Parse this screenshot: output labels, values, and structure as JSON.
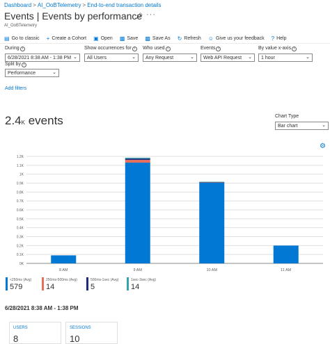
{
  "breadcrumb": {
    "items": [
      "Dashboard",
      "AI_OoBTelemetry",
      "End-to-end transaction details"
    ],
    "separator": ">"
  },
  "page": {
    "title": "Events | Events by performance",
    "subtitle": "AI_OoBTelemetry"
  },
  "toolbar": {
    "items": [
      {
        "label": "Go to classic",
        "icon": "classic-icon"
      },
      {
        "label": "Create a Cohort",
        "icon": "plus-icon"
      },
      {
        "label": "Open",
        "icon": "folder-icon"
      },
      {
        "label": "Save",
        "icon": "save-icon"
      },
      {
        "label": "Save As",
        "icon": "save-as-icon"
      },
      {
        "label": "Refresh",
        "icon": "refresh-icon"
      },
      {
        "label": "Give us your feedback",
        "icon": "feedback-icon"
      },
      {
        "label": "Help",
        "icon": "help-icon"
      }
    ]
  },
  "filters": {
    "during": {
      "label": "During",
      "value": "6/28/2021 8:38 AM - 1:38 PM"
    },
    "occurrences": {
      "label": "Show occurrences for",
      "value": "All Users"
    },
    "who_used": {
      "label": "Who used",
      "value": "Any Request"
    },
    "events": {
      "label": "Events",
      "value": "Web API Request"
    },
    "by_value": {
      "label": "By value x-axis",
      "value": "1 hour"
    },
    "split_by": {
      "label": "Split by",
      "value": "Performance"
    },
    "add_filters": "Add filters"
  },
  "summary": {
    "count": "2.4",
    "unit": "K",
    "noun": "events"
  },
  "chart_type": {
    "label": "Chart Type",
    "value": "Bar chart"
  },
  "chart_data": {
    "type": "bar",
    "stacked": true,
    "categories": [
      "8 AM",
      "9 AM",
      "10 AM",
      "11 AM"
    ],
    "ylim": [
      0,
      1200
    ],
    "yticks": [
      "0K",
      "0.1K",
      "0.2K",
      "0.3K",
      "0.4K",
      "0.5K",
      "0.6K",
      "0.7K",
      "0.8K",
      "0.9K",
      "1K",
      "1.1K",
      "1.2K"
    ],
    "grid": true,
    "series": [
      {
        "name": "<250ms (Avg)",
        "color": "#0078d4",
        "values": [
          90,
          1130,
          905,
          200
        ]
      },
      {
        "name": "250ms-500ms (Avg)",
        "color": "#e8705a",
        "values": [
          0,
          30,
          4,
          0
        ]
      },
      {
        "name": "500ms-1sec (Avg)",
        "color": "#1f2a7c",
        "values": [
          0,
          15,
          3,
          0
        ]
      },
      {
        "name": "1sec-3sec (Avg)",
        "color": "#3aa1ad",
        "values": [
          0,
          10,
          3,
          0
        ]
      }
    ],
    "legend": {
      "position": "bottom",
      "totals": [
        "579",
        "14",
        "5",
        "14"
      ]
    }
  },
  "range": "6/28/2021 8:38 AM - 1:38 PM",
  "metrics": [
    {
      "label": "USERS",
      "value": "8"
    },
    {
      "label": "SESSIONS",
      "value": "10"
    }
  ]
}
